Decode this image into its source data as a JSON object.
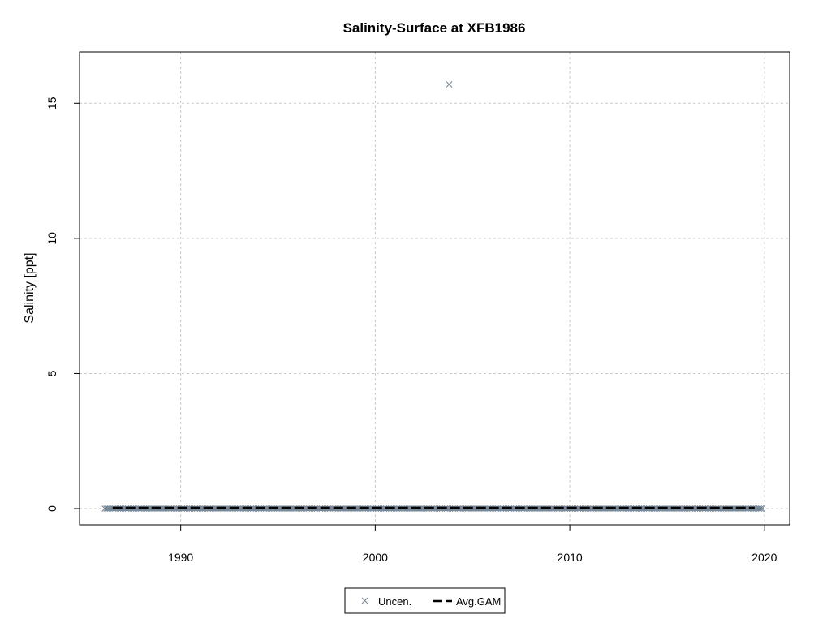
{
  "chart_data": {
    "type": "scatter",
    "title": "Salinity-Surface at XFB1986",
    "xlabel": "",
    "ylabel": "Salinity [ppt]",
    "xlim": [
      1984.8,
      2021.3
    ],
    "ylim": [
      -0.6,
      16.9
    ],
    "x_ticks": [
      "1990",
      "2000",
      "2010",
      "2020"
    ],
    "x_tick_values": [
      1990,
      2000,
      2010,
      2020
    ],
    "y_ticks": [
      "0",
      "5",
      "10",
      "15"
    ],
    "y_tick_values": [
      0,
      5,
      10,
      15
    ],
    "grid": true,
    "legend_position": "bottom-center",
    "series": [
      {
        "name": "Uncen.",
        "kind": "points",
        "marker": "x",
        "color": "#708090",
        "x_start": 1986.1,
        "x_end": 2019.9,
        "typical_y": 0.0,
        "outliers": [
          {
            "x": 2003.8,
            "y": 15.7
          }
        ]
      },
      {
        "name": "Avg.GAM",
        "kind": "line",
        "style": "dashed",
        "color": "#000000",
        "x": [
          1986.5,
          2019.5
        ],
        "y": [
          0.03,
          0.03
        ]
      }
    ]
  }
}
